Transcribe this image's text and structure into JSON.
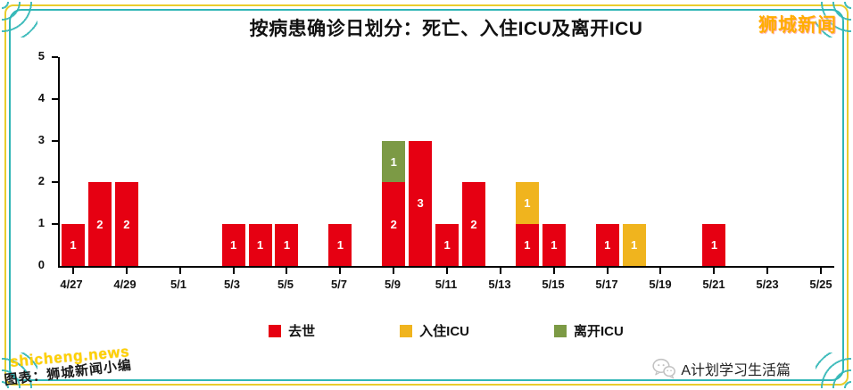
{
  "header": {
    "title": "按病患确诊日划分：死亡、入住ICU及离开ICU",
    "brand": "狮城新闻"
  },
  "chart_data": {
    "type": "bar",
    "stacked": true,
    "title": "按病患确诊日划分：死亡、入住ICU及离开ICU",
    "xlabel": "",
    "ylabel": "",
    "ylim": [
      0,
      5
    ],
    "yticks": [
      0,
      1,
      2,
      3,
      4,
      5
    ],
    "grid": false,
    "legend_position": "bottom",
    "categories": [
      "4/27",
      "4/28",
      "4/29",
      "4/30",
      "5/1",
      "5/2",
      "5/3",
      "5/4",
      "5/5",
      "5/6",
      "5/7",
      "5/8",
      "5/9",
      "5/10",
      "5/11",
      "5/12",
      "5/13",
      "5/14",
      "5/15",
      "5/16",
      "5/17",
      "5/18",
      "5/19",
      "5/20",
      "5/21",
      "5/22",
      "5/23",
      "5/24",
      "5/25"
    ],
    "x_tick_labels": [
      "4/27",
      "4/29",
      "5/1",
      "5/3",
      "5/5",
      "5/7",
      "5/9",
      "5/11",
      "5/13",
      "5/15",
      "5/17",
      "5/19",
      "5/21",
      "5/23",
      "5/25"
    ],
    "series": [
      {
        "key": "died",
        "name": "去世",
        "color": "#e60012",
        "values": [
          1,
          2,
          2,
          0,
          0,
          0,
          1,
          1,
          1,
          0,
          1,
          0,
          2,
          3,
          1,
          2,
          0,
          1,
          1,
          0,
          1,
          0,
          0,
          0,
          1,
          0,
          0,
          0,
          0
        ]
      },
      {
        "key": "icu-in",
        "name": "入住ICU",
        "color": "#f0b41e",
        "values": [
          0,
          0,
          0,
          0,
          0,
          0,
          0,
          0,
          0,
          0,
          0,
          0,
          0,
          0,
          0,
          0,
          0,
          1,
          0,
          0,
          0,
          1,
          0,
          0,
          0,
          0,
          0,
          0,
          0
        ]
      },
      {
        "key": "icu-out",
        "name": "离开ICU",
        "color": "#7c9a45",
        "values": [
          0,
          0,
          0,
          0,
          0,
          0,
          0,
          0,
          0,
          0,
          0,
          0,
          1,
          0,
          0,
          0,
          0,
          0,
          0,
          0,
          0,
          0,
          0,
          0,
          0,
          0,
          0,
          0,
          0
        ]
      }
    ]
  },
  "footer": {
    "watermark": "shicheng.news",
    "credit": "图表：狮城新闻小编",
    "wechat_account": "A计划学习生活篇",
    "wechat_icon": "wechat-icon"
  },
  "colors": {
    "died": "#e60012",
    "icu_in": "#f0b41e",
    "icu_out": "#7c9a45",
    "brand_text": "#ffae00",
    "frame_teal": "#2fb6b6",
    "frame_yellow": "#e9cd2c",
    "axis": "#000000",
    "background": "#ffffff"
  }
}
